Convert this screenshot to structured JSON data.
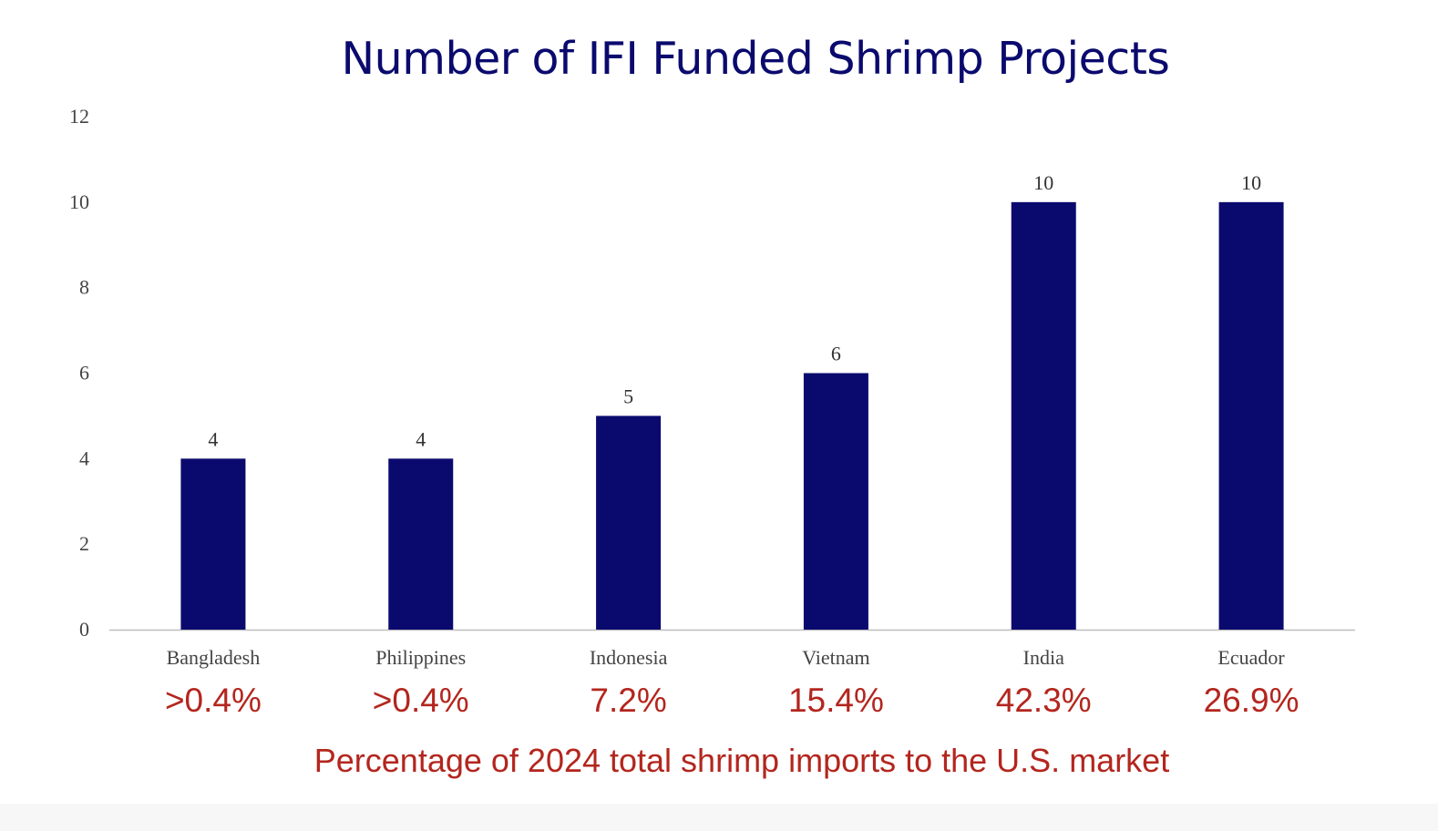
{
  "chart_data": {
    "type": "bar",
    "title": "Number of IFI Funded Shrimp Projects",
    "categories": [
      "Bangladesh",
      "Philippines",
      "Indonesia",
      "Vietnam",
      "India",
      "Ecuador"
    ],
    "values": [
      4,
      4,
      5,
      6,
      10,
      10
    ],
    "data_labels": [
      "4",
      "4",
      "5",
      "6",
      "10",
      "10"
    ],
    "import_shares": [
      ">0.4%",
      ">0.4%",
      "7.2%",
      "15.4%",
      "42.3%",
      "26.9%"
    ],
    "xlabel": "",
    "ylabel": "",
    "ylim": [
      0,
      12
    ],
    "yticks": [
      0,
      2,
      4,
      6,
      8,
      10,
      12
    ],
    "grid": false,
    "legend": "none",
    "bar_color": "#0a0a6e",
    "share_color": "#b3261e",
    "footnote": "Percentage of 2024 total shrimp imports to the U.S. market"
  }
}
